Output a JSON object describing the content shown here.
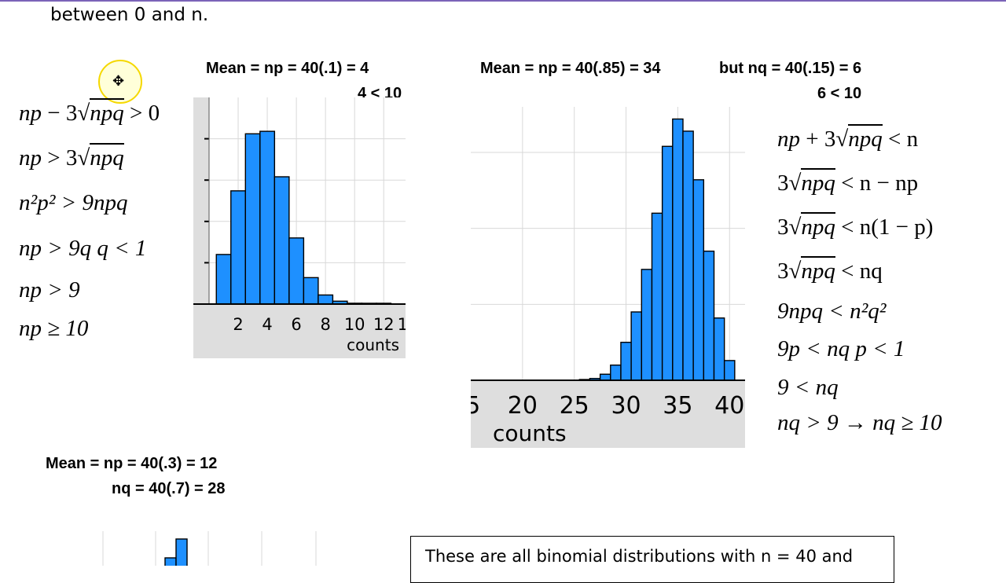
{
  "intro_text": "between 0 and n.",
  "left_chart": {
    "header_line1": "Mean = np = 40(.1) = 4",
    "header_line2": "4 < 10",
    "xlabel": "counts",
    "x_tick_labels": [
      "2",
      "4",
      "6",
      "8",
      "10",
      "12",
      "1"
    ]
  },
  "right_chart": {
    "header_line1": "Mean = np = 40(.85) = 34",
    "header_nq": "but nq = 40(.15) = 6",
    "header_line2": "6 < 10",
    "xlabel": "counts",
    "x_tick_labels": [
      "5",
      "20",
      "25",
      "30",
      "35",
      "40"
    ]
  },
  "bottom_chart": {
    "header_line1": "Mean = np = 40(.3) = 12",
    "header_line2": "nq = 40(.7) = 28"
  },
  "left_derivation": [
    {
      "a": "np",
      "b": " − 3",
      "root": "npq",
      "c": " > 0"
    },
    {
      "a": "np",
      "b": " > 3",
      "root": "npq",
      "c": ""
    },
    {
      "text": "n²p² > 9npq"
    },
    {
      "text": "np > 9q     q < 1"
    },
    {
      "text": "np > 9"
    },
    {
      "text": "np ≥ 10"
    }
  ],
  "right_derivation": [
    {
      "a": "np",
      "b": " + 3",
      "root": "npq",
      "c": " < n"
    },
    {
      "a": "",
      "b": "3",
      "root": "npq",
      "c": " < n − np"
    },
    {
      "a": "",
      "b": "3",
      "root": "npq",
      "c": " < n(1 − p)"
    },
    {
      "a": "",
      "b": "3",
      "root": "npq",
      "c": " < nq"
    },
    {
      "text": "9npq < n²q²"
    },
    {
      "text": "9p < nq     p < 1"
    },
    {
      "text": "9 < nq"
    },
    {
      "text": "nq > 9 → nq ≥ 10"
    }
  ],
  "callout_text": "These are all binomial distributions with n = 40 and",
  "chart_data": [
    {
      "type": "bar",
      "x": [
        1,
        2,
        3,
        4,
        5,
        6,
        7,
        8,
        9,
        10,
        11,
        12
      ],
      "values": [
        0.06,
        0.137,
        0.206,
        0.209,
        0.154,
        0.08,
        0.032,
        0.011,
        0.0035,
        0.001,
        0.0002,
        0.0001
      ],
      "xlim": [
        0,
        13.5
      ],
      "ylim": [
        0,
        0.25
      ],
      "xlabel": "counts",
      "color": "#1e90ff"
    },
    {
      "type": "bar",
      "x": [
        26,
        27,
        28,
        29,
        30,
        31,
        32,
        33,
        34,
        35,
        36,
        37,
        38,
        39,
        40
      ],
      "values": [
        0.0005,
        0.0012,
        0.004,
        0.01,
        0.025,
        0.045,
        0.073,
        0.11,
        0.154,
        0.172,
        0.164,
        0.132,
        0.085,
        0.041,
        0.013
      ],
      "xlim": [
        15,
        41.5
      ],
      "ylim": [
        0,
        0.18
      ],
      "xlabel": "counts",
      "color": "#1e90ff"
    },
    {
      "type": "bar",
      "x": [
        12,
        13
      ],
      "values": [
        0.012,
        0.02
      ],
      "color": "#1e90ff"
    }
  ]
}
